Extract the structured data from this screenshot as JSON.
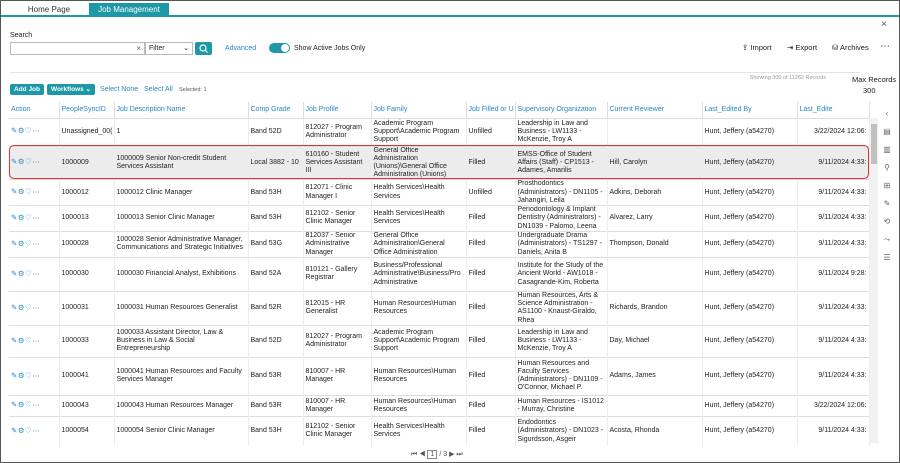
{
  "tabs": [
    "Home Page",
    "Job Management"
  ],
  "search": {
    "label": "Search",
    "filter": "Filter",
    "advanced": "Advanced",
    "toggle_label": "Show Active Jobs Only"
  },
  "actions": [
    "Import",
    "Export",
    "Archives"
  ],
  "toolbar": {
    "add": "Add Job",
    "workflows": "Workflows",
    "select_none": "Select None",
    "select_all": "Select All",
    "selected": "Selected: 1",
    "showing": "Showing 300 of 11262 Records",
    "max_label": "Max Records",
    "max_value": "300"
  },
  "table": {
    "headers": [
      "Action",
      "PeopleSyncID",
      "Job Description Name",
      "Comp Grade",
      "Job Profile",
      "Job Family",
      "Job Filled or U",
      "Supervisory Organization",
      "Current Reviewer",
      "Last_Edited By",
      "Last_Edite"
    ],
    "rows": [
      {
        "id": "Unassigned_00(",
        "name": "1",
        "grade": "Band 52D",
        "profile": "812027 - Program Administrator",
        "family": "Academic Program Support\\Academic Program Support",
        "status": "Unfilled",
        "org": "Leadership in Law and Business - LW1133 - McKenzie, Troy A",
        "edited_by": "Hunt, Jeffery (a54270)",
        "edited": "3/22/2024 12:06:"
      },
      {
        "id": "1000009",
        "name": "1000009 Senior Non-credit Student Services Assistant",
        "grade": "Local 3882 - 10",
        "profile": "610160 - Student Services Assistant III",
        "family": "General Office Administration (Unions)\\General Office Administration (Unions)",
        "status": "Filled",
        "org": "EMSS-Office of Student Affairs (Staff) - CP1513 - Adames, Amarilis",
        "reviewer": "Hill, Carolyn",
        "edited_by": "Hunt, Jeffery (a54270)",
        "edited": "9/11/2024 4:33:"
      },
      {
        "id": "1000012",
        "name": "1000012 Clinic Manager",
        "grade": "Band 53H",
        "profile": "812071 - Clinic Manager I",
        "family": "Health Services\\Health Services",
        "status": "Unfilled",
        "org": "Prosthodontics (Administrators) - DN1105 - Jahangiri, Leila",
        "reviewer": "Adkins, Deborah",
        "edited_by": "Hunt, Jeffery (a54270)",
        "edited": "9/11/2024 4:33:"
      },
      {
        "id": "1000013",
        "name": "1000013 Senior Clinic Manager",
        "grade": "Band 53H",
        "profile": "812102 - Senior Clinic Manager",
        "family": "Health Services\\Health Services",
        "status": "Filled",
        "org": "Periodontology & Implant Dentistry (Administrators) - DN1039 - Palomo, Leena",
        "reviewer": "Alvarez, Larry",
        "edited_by": "Hunt, Jeffery (a54270)",
        "edited": "9/11/2024 4:33:"
      },
      {
        "id": "1000028",
        "name": "1000028 Senior Administrative Manager, Communications and Strategic Initiatives",
        "grade": "Band 53G",
        "profile": "812037 - Senior Administrative Manager",
        "family": "General Office Administration\\General Office Administration",
        "status": "Filled",
        "org": "Undergraduate Drama (Administrators) - TS1297 - Daniels, Anita B",
        "reviewer": "Thompson, Donald",
        "edited_by": "Hunt, Jeffery (a54270)",
        "edited": "9/11/2024 4:33:"
      },
      {
        "id": "1000030",
        "name": "1000030 Financial Analyst, Exhibitions",
        "grade": "Band 52A",
        "profile": "810121 - Gallery Registrar",
        "family": "Business/Professional Administrative\\Business/Pro Administrative",
        "status": "Filled",
        "org": "Institute for the Study of the Ancient World - AW1018 - Casagrande-Kim, Roberta",
        "edited_by": "Hunt, Jeffery (a54270)",
        "edited": "9/11/2024 9:28:"
      },
      {
        "id": "1000031",
        "name": "1000031 Human Resources Generalist",
        "grade": "Band 52R",
        "profile": "812015 - HR Generalist",
        "family": "Human Resources\\Human Resources",
        "status": "Filled",
        "org": "Human Resources, Arts & Science Administration - AS1100 - Knaust-Giraldo, Rhea",
        "reviewer": "Richards, Brandon",
        "edited_by": "Hunt, Jeffery (a54270)",
        "edited": "9/11/2024 4:33:"
      },
      {
        "id": "1000033",
        "name": "1000033 Assistant Director, Law & Business in Law & Social Entrepreneurship",
        "grade": "Band 52D",
        "profile": "812027 - Program Administrator",
        "family": "Academic Program Support\\Academic Program Support",
        "status": "Filled",
        "org": "Leadership in Law and Business - LW1133 - McKenzie, Troy A",
        "reviewer": "Day, Michael",
        "edited_by": "Hunt, Jeffery (a54270)",
        "edited": "9/11/2024 4:33:"
      },
      {
        "id": "1000041",
        "name": "1000041 Human Resources and Faculty Services Manager",
        "grade": "Band 53R",
        "profile": "810007 - HR Manager",
        "family": "Human Resources\\Human Resources",
        "status": "Filled",
        "org": "Human Resources and Faculty Services (Administrators) - DN1109 - O'Connor, Michael P.",
        "reviewer": "Adams, James",
        "edited_by": "Hunt, Jeffery (a54270)",
        "edited": "9/11/2024 4:33:"
      },
      {
        "id": "1000043",
        "name": "1000043 Human Resources Manager",
        "grade": "Band 53R",
        "profile": "810007 - HR Manager",
        "family": "Human Resources\\Human Resources",
        "status": "Filled",
        "org": "Human Resources - IS1012 - Murray, Christine",
        "edited_by": "Hunt, Jeffery (a54270)",
        "edited": "3/22/2024 12:06:"
      },
      {
        "id": "1000054",
        "name": "1000054 Senior Clinic Manager",
        "grade": "Band 53H",
        "profile": "812102 - Senior Clinic Manager",
        "family": "Health Services\\Health Services",
        "status": "Filled",
        "org": "Endodontics (Administrators) - DN1023 - Sigurdsson, Asgeir",
        "reviewer": "Acosta, Rhonda",
        "edited_by": "Hunt, Jeffery (a54270)",
        "edited": "9/11/2024 4:33:"
      }
    ]
  },
  "pagination": {
    "page": "1",
    "total": "/ 3"
  }
}
